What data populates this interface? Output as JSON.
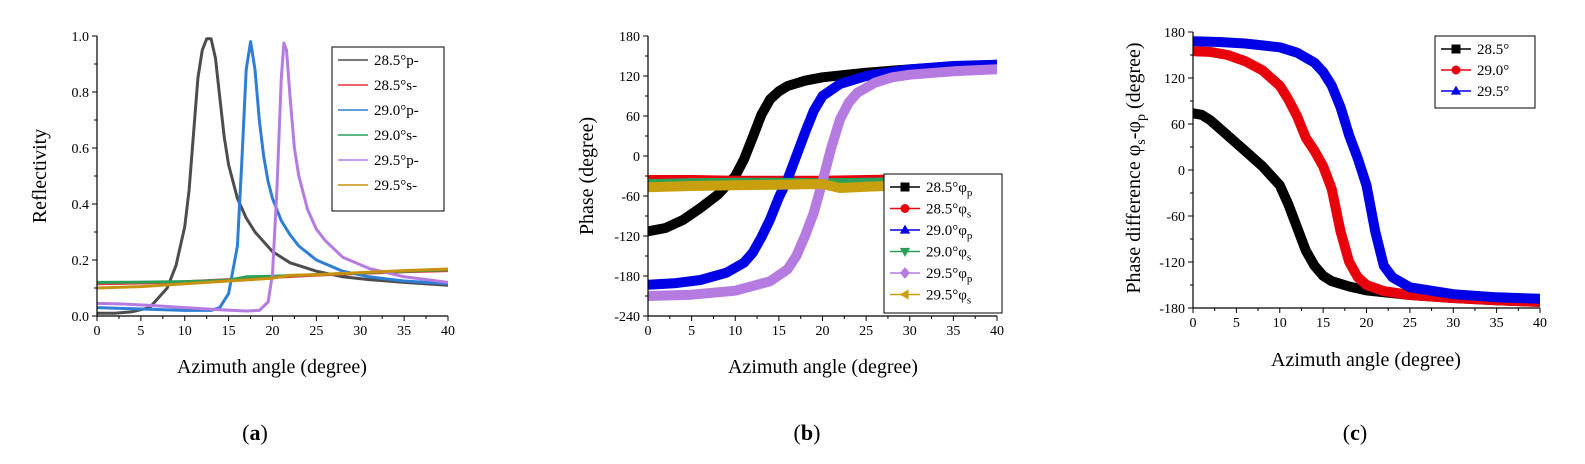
{
  "chart_data": [
    {
      "type": "line",
      "panel_label": "a",
      "xlabel": "Azimuth angle (degree)",
      "ylabel": "Reflectivity",
      "xlim": [
        0,
        40
      ],
      "ylim": [
        0,
        1.0
      ],
      "xticks": [
        "0",
        "5",
        "10",
        "15",
        "20",
        "25",
        "30",
        "35",
        "40"
      ],
      "yticks": [
        "0.0",
        "0.2",
        "0.4",
        "0.6",
        "0.8",
        "1.0"
      ],
      "legend_position": "top-right",
      "series": [
        {
          "name": "28.5°p-",
          "color": "#4d4d4d",
          "style": "line",
          "x": [
            0,
            2,
            4,
            6,
            8,
            9,
            10,
            10.5,
            11,
            11.5,
            12,
            12.5,
            13,
            13.5,
            14,
            14.5,
            15,
            16,
            17,
            18,
            20,
            22,
            25,
            28,
            31,
            35,
            40
          ],
          "y": [
            0.01,
            0.01,
            0.015,
            0.03,
            0.1,
            0.18,
            0.32,
            0.45,
            0.65,
            0.85,
            0.95,
            0.99,
            0.99,
            0.92,
            0.78,
            0.64,
            0.54,
            0.42,
            0.35,
            0.3,
            0.23,
            0.19,
            0.16,
            0.14,
            0.13,
            0.12,
            0.11
          ]
        },
        {
          "name": "28.5°s-",
          "color": "#e8323c",
          "style": "line",
          "x": [
            0,
            5,
            10,
            15,
            20,
            25,
            30,
            35,
            40
          ],
          "y": [
            0.115,
            0.118,
            0.122,
            0.13,
            0.138,
            0.146,
            0.152,
            0.158,
            0.162
          ]
        },
        {
          "name": "29.0°p-",
          "color": "#2e7ed6",
          "style": "line",
          "x": [
            0,
            5,
            10,
            13,
            14,
            15,
            16,
            16.5,
            17,
            17.5,
            18,
            18.5,
            19,
            19.5,
            20,
            21,
            22,
            23,
            25,
            28,
            31,
            35,
            40
          ],
          "y": [
            0.03,
            0.025,
            0.02,
            0.02,
            0.03,
            0.08,
            0.25,
            0.55,
            0.88,
            0.98,
            0.88,
            0.7,
            0.57,
            0.48,
            0.42,
            0.34,
            0.29,
            0.25,
            0.2,
            0.16,
            0.14,
            0.125,
            0.115
          ]
        },
        {
          "name": "29.0°s-",
          "color": "#2aa058",
          "style": "line",
          "x": [
            0,
            5,
            10,
            15,
            17,
            20,
            25,
            30,
            35,
            40
          ],
          "y": [
            0.12,
            0.121,
            0.123,
            0.128,
            0.14,
            0.142,
            0.148,
            0.154,
            0.16,
            0.165
          ]
        },
        {
          "name": "29.5°p-",
          "color": "#b57be0",
          "style": "line",
          "x": [
            0,
            3,
            6,
            10,
            14,
            17,
            18.5,
            19.5,
            20,
            20.5,
            21,
            21.3,
            21.6,
            22,
            22.5,
            23,
            24,
            25,
            26,
            28,
            31,
            35,
            40
          ],
          "y": [
            0.045,
            0.043,
            0.038,
            0.03,
            0.022,
            0.018,
            0.02,
            0.05,
            0.15,
            0.45,
            0.85,
            0.975,
            0.95,
            0.78,
            0.6,
            0.5,
            0.38,
            0.31,
            0.27,
            0.21,
            0.17,
            0.14,
            0.12
          ]
        },
        {
          "name": "29.5°s-",
          "color": "#c8910f",
          "style": "line",
          "x": [
            0,
            5,
            10,
            15,
            20,
            22,
            25,
            30,
            35,
            40
          ],
          "y": [
            0.1,
            0.105,
            0.115,
            0.125,
            0.135,
            0.145,
            0.148,
            0.155,
            0.162,
            0.168
          ]
        }
      ]
    },
    {
      "type": "line",
      "panel_label": "b",
      "xlabel": "Azimuth angle (degree)",
      "ylabel": "Phase (degree)",
      "xlim": [
        0,
        40
      ],
      "ylim": [
        -240,
        180
      ],
      "xticks": [
        "0",
        "5",
        "10",
        "15",
        "20",
        "25",
        "30",
        "35",
        "40"
      ],
      "yticks": [
        "-240",
        "-180",
        "-120",
        "-60",
        "0",
        "60",
        "120",
        "180"
      ],
      "legend_position": "right",
      "series": [
        {
          "name": "28.5°",
          "subscript": "p",
          "color": "#000000",
          "marker": "square",
          "x": [
            0,
            2,
            4,
            6,
            8,
            10,
            11,
            12,
            13,
            14,
            15,
            16,
            18,
            20,
            25,
            30,
            35,
            40
          ],
          "y": [
            -113,
            -108,
            -96,
            -78,
            -58,
            -30,
            -5,
            28,
            62,
            85,
            97,
            105,
            113,
            118,
            125,
            130,
            134,
            137
          ]
        },
        {
          "name": "28.5°",
          "subscript": "s",
          "color": "#e8000b",
          "marker": "circle",
          "x": [
            0,
            5,
            10,
            15,
            20,
            25,
            30,
            35,
            40
          ],
          "y": [
            -36,
            -36,
            -37,
            -37,
            -37,
            -36,
            -35,
            -35,
            -34
          ]
        },
        {
          "name": "29.0°",
          "subscript": "p",
          "color": "#0000e6",
          "marker": "triangle-up",
          "x": [
            0,
            3,
            6,
            9,
            11,
            12,
            13,
            14,
            15,
            16,
            17,
            18,
            19,
            20,
            22,
            25,
            30,
            35,
            40
          ],
          "y": [
            -193,
            -191,
            -186,
            -175,
            -160,
            -145,
            -122,
            -95,
            -62,
            -35,
            0,
            35,
            68,
            90,
            108,
            120,
            130,
            135,
            137
          ]
        },
        {
          "name": "29.0°",
          "subscript": "s",
          "color": "#2aa058",
          "marker": "triangle-down",
          "x": [
            0,
            5,
            10,
            15,
            20,
            25,
            30,
            35,
            40
          ],
          "y": [
            -42,
            -41,
            -40,
            -40,
            -41,
            -40,
            -39,
            -39,
            -38
          ]
        },
        {
          "name": "29.5°",
          "subscript": "p",
          "color": "#b57be0",
          "marker": "diamond",
          "x": [
            0,
            5,
            10,
            14,
            16,
            17,
            18,
            19,
            20,
            21,
            22,
            23,
            24,
            26,
            28,
            30,
            35,
            40
          ],
          "y": [
            -210,
            -208,
            -202,
            -188,
            -170,
            -150,
            -120,
            -85,
            -38,
            12,
            55,
            80,
            95,
            110,
            118,
            122,
            127,
            130
          ]
        },
        {
          "name": "29.5°",
          "subscript": "s",
          "color": "#c8a00f",
          "marker": "triangle-left",
          "x": [
            0,
            5,
            10,
            15,
            20,
            22,
            25,
            30,
            35,
            40
          ],
          "y": [
            -47,
            -45,
            -44,
            -43,
            -42,
            -48,
            -46,
            -44,
            -42,
            -40
          ]
        }
      ]
    },
    {
      "type": "line",
      "panel_label": "c",
      "xlabel": "Azimuth angle (degree)",
      "ylabel_parts": [
        "Phase difference φ",
        "s",
        "-φ",
        "p",
        " (degree)"
      ],
      "xlim": [
        0,
        40
      ],
      "ylim": [
        -180,
        180
      ],
      "xticks": [
        "0",
        "5",
        "10",
        "15",
        "20",
        "25",
        "30",
        "35",
        "40"
      ],
      "yticks": [
        "-180",
        "-120",
        "-60",
        "0",
        "60",
        "120",
        "180"
      ],
      "legend_position": "top-right",
      "series": [
        {
          "name": "28.5°",
          "color": "#000000",
          "marker": "square",
          "x": [
            0,
            1,
            2,
            4,
            6,
            8,
            10,
            11,
            12,
            13,
            14,
            15,
            16,
            18,
            20,
            25,
            30,
            35,
            40
          ],
          "y": [
            74,
            72,
            65,
            45,
            25,
            5,
            -20,
            -45,
            -75,
            -105,
            -125,
            -138,
            -145,
            -152,
            -157,
            -163,
            -167,
            -170,
            -172
          ]
        },
        {
          "name": "29.0°",
          "color": "#e8000b",
          "marker": "circle",
          "x": [
            0,
            2,
            4,
            6,
            8,
            10,
            11,
            12,
            13,
            14,
            15,
            16,
            17,
            18,
            19,
            20,
            22,
            25,
            30,
            35,
            40
          ],
          "y": [
            155,
            154,
            150,
            142,
            130,
            110,
            92,
            70,
            42,
            25,
            5,
            -25,
            -80,
            -120,
            -140,
            -150,
            -158,
            -163,
            -167,
            -170,
            -172
          ]
        },
        {
          "name": "29.5°",
          "color": "#0000e6",
          "marker": "triangle-up",
          "x": [
            0,
            3,
            6,
            10,
            12,
            14,
            15,
            16,
            17,
            18,
            19,
            20,
            21,
            22,
            23,
            25,
            30,
            35,
            40
          ],
          "y": [
            168,
            167,
            165,
            160,
            153,
            140,
            128,
            110,
            82,
            45,
            15,
            -20,
            -80,
            -125,
            -140,
            -153,
            -162,
            -166,
            -168
          ]
        }
      ]
    }
  ]
}
